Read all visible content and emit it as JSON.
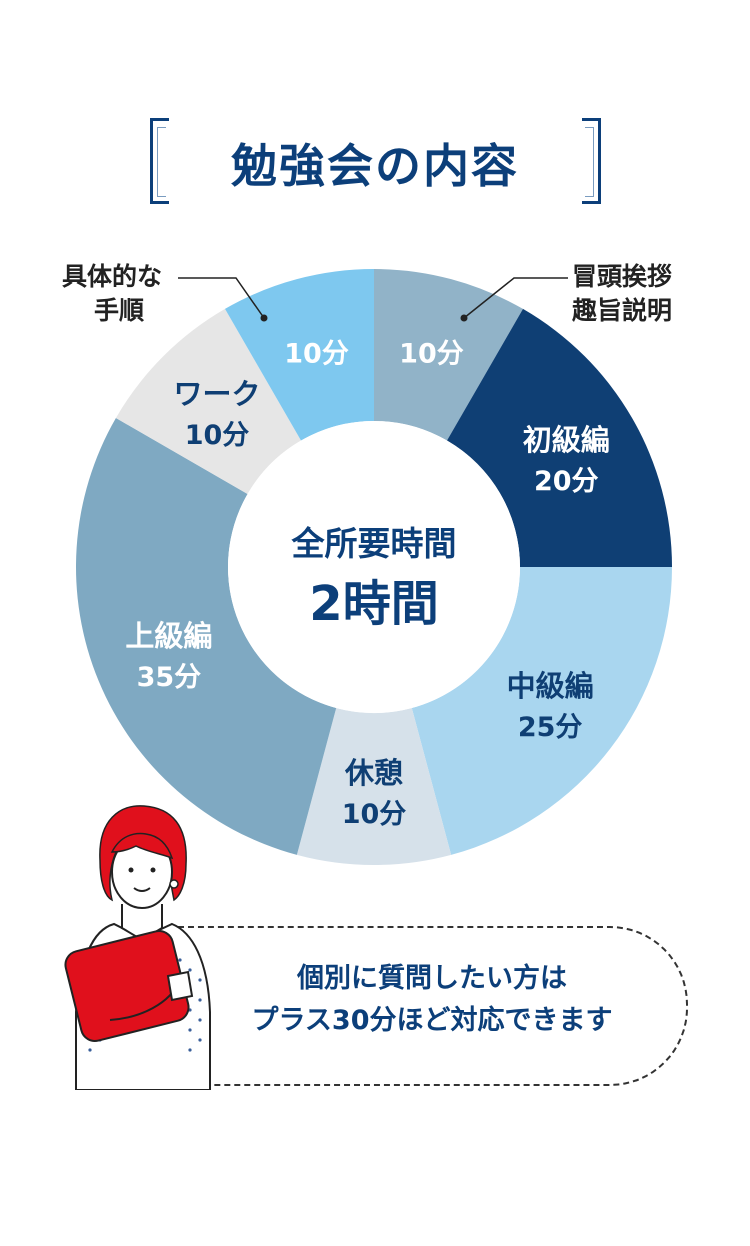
{
  "header": {
    "title": "勉強会の内容"
  },
  "chart_data": {
    "type": "pie",
    "donut": true,
    "unit": "分",
    "slices": [
      {
        "name": "冒頭挨拶趣旨説明",
        "value": 10,
        "label_line1": "",
        "label_line2": "10分",
        "color": "#91b3c8",
        "text_color": "#ffffff"
      },
      {
        "name": "初級編",
        "value": 20,
        "label_line1": "初級編",
        "label_line2": "20分",
        "color": "#0f3f74",
        "text_color": "#ffffff"
      },
      {
        "name": "中級編",
        "value": 25,
        "label_line1": "中級編",
        "label_line2": "25分",
        "color": "#a9d6ef",
        "text_color": "#0f3f74"
      },
      {
        "name": "休憩",
        "value": 10,
        "label_line1": "休憩",
        "label_line2": "10分",
        "color": "#d6e1ea",
        "text_color": "#0f3f74"
      },
      {
        "name": "上級編",
        "value": 35,
        "label_line1": "上級編",
        "label_line2": "35分",
        "color": "#7fa9c2",
        "text_color": "#ffffff"
      },
      {
        "name": "ワーク",
        "value": 10,
        "label_line1": "ワーク",
        "label_line2": "10分",
        "color": "#e6e6e6",
        "text_color": "#0f3f74"
      },
      {
        "name": "具体的な手順",
        "value": 10,
        "label_line1": "",
        "label_line2": "10分",
        "color": "#7ec8ef",
        "text_color": "#ffffff"
      }
    ],
    "center": {
      "line1": "全所要時間",
      "line2": "2時間"
    },
    "callouts": {
      "left_line1": "具体的な",
      "left_line2": "手順",
      "right_line1": "冒頭挨拶",
      "right_line2": "趣旨説明"
    }
  },
  "note": {
    "line1": "個別に質問したい方は",
    "line2": "プラス30分ほど対応できます"
  },
  "colors": {
    "accent": "#0c3f7a",
    "hair": "#e0101c"
  }
}
